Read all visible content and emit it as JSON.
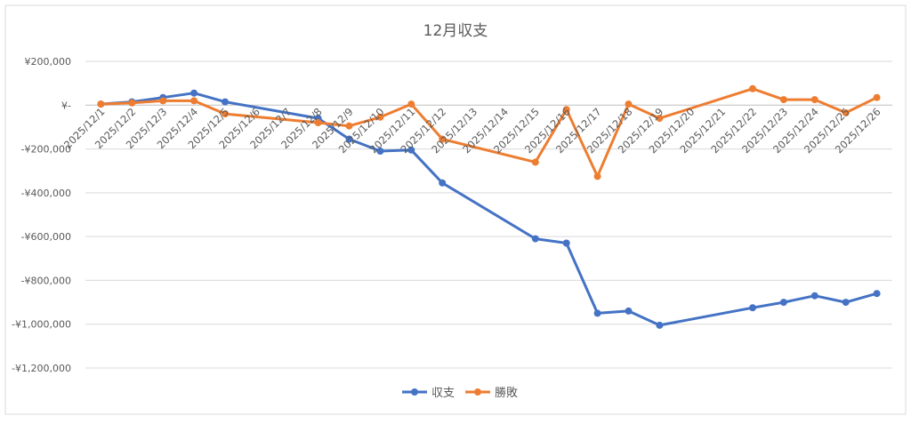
{
  "chart_data": {
    "type": "line",
    "title": "12月収支",
    "xlabel": "",
    "ylabel": "",
    "ylim": [
      -1200000,
      200000
    ],
    "yticks": [
      200000,
      0,
      -200000,
      -400000,
      -600000,
      -800000,
      -1000000,
      -1200000
    ],
    "ytick_labels": [
      "¥200,000",
      "¥-",
      "-¥200,000",
      "-¥400,000",
      "-¥600,000",
      "-¥800,000",
      "-¥1,000,000",
      "-¥1,200,000"
    ],
    "x_axis_type": "date",
    "x": [
      "2025/12/1",
      "2025/12/2",
      "2025/12/3",
      "2025/12/4",
      "2025/12/5",
      "2025/12/6",
      "2025/12/7",
      "2025/12/8",
      "2025/12/9",
      "2025/12/10",
      "2025/12/11",
      "2025/12/12",
      "2025/12/13",
      "2025/12/14",
      "2025/12/15",
      "2025/12/16",
      "2025/12/17",
      "2025/12/18",
      "2025/12/19",
      "2025/12/20",
      "2025/12/21",
      "2025/12/22",
      "2025/12/23",
      "2025/12/24",
      "2025/12/25",
      "2025/12/26"
    ],
    "series": [
      {
        "name": "収支",
        "color": "#4472C4",
        "values": [
          5000,
          15000,
          35000,
          55000,
          15000,
          null,
          null,
          -60000,
          -155000,
          -210000,
          -205000,
          -355000,
          null,
          null,
          -610000,
          -630000,
          -950000,
          -940000,
          -1005000,
          null,
          null,
          -925000,
          -900000,
          -870000,
          -900000,
          -860000
        ]
      },
      {
        "name": "勝敗",
        "color": "#ED7D31",
        "values": [
          5000,
          10000,
          20000,
          20000,
          -40000,
          null,
          null,
          -80000,
          -95000,
          -55000,
          5000,
          -155000,
          null,
          null,
          -260000,
          -20000,
          -325000,
          5000,
          -60000,
          null,
          null,
          75000,
          25000,
          25000,
          -35000,
          35000
        ]
      }
    ],
    "legend_position": "bottom",
    "grid": true
  }
}
